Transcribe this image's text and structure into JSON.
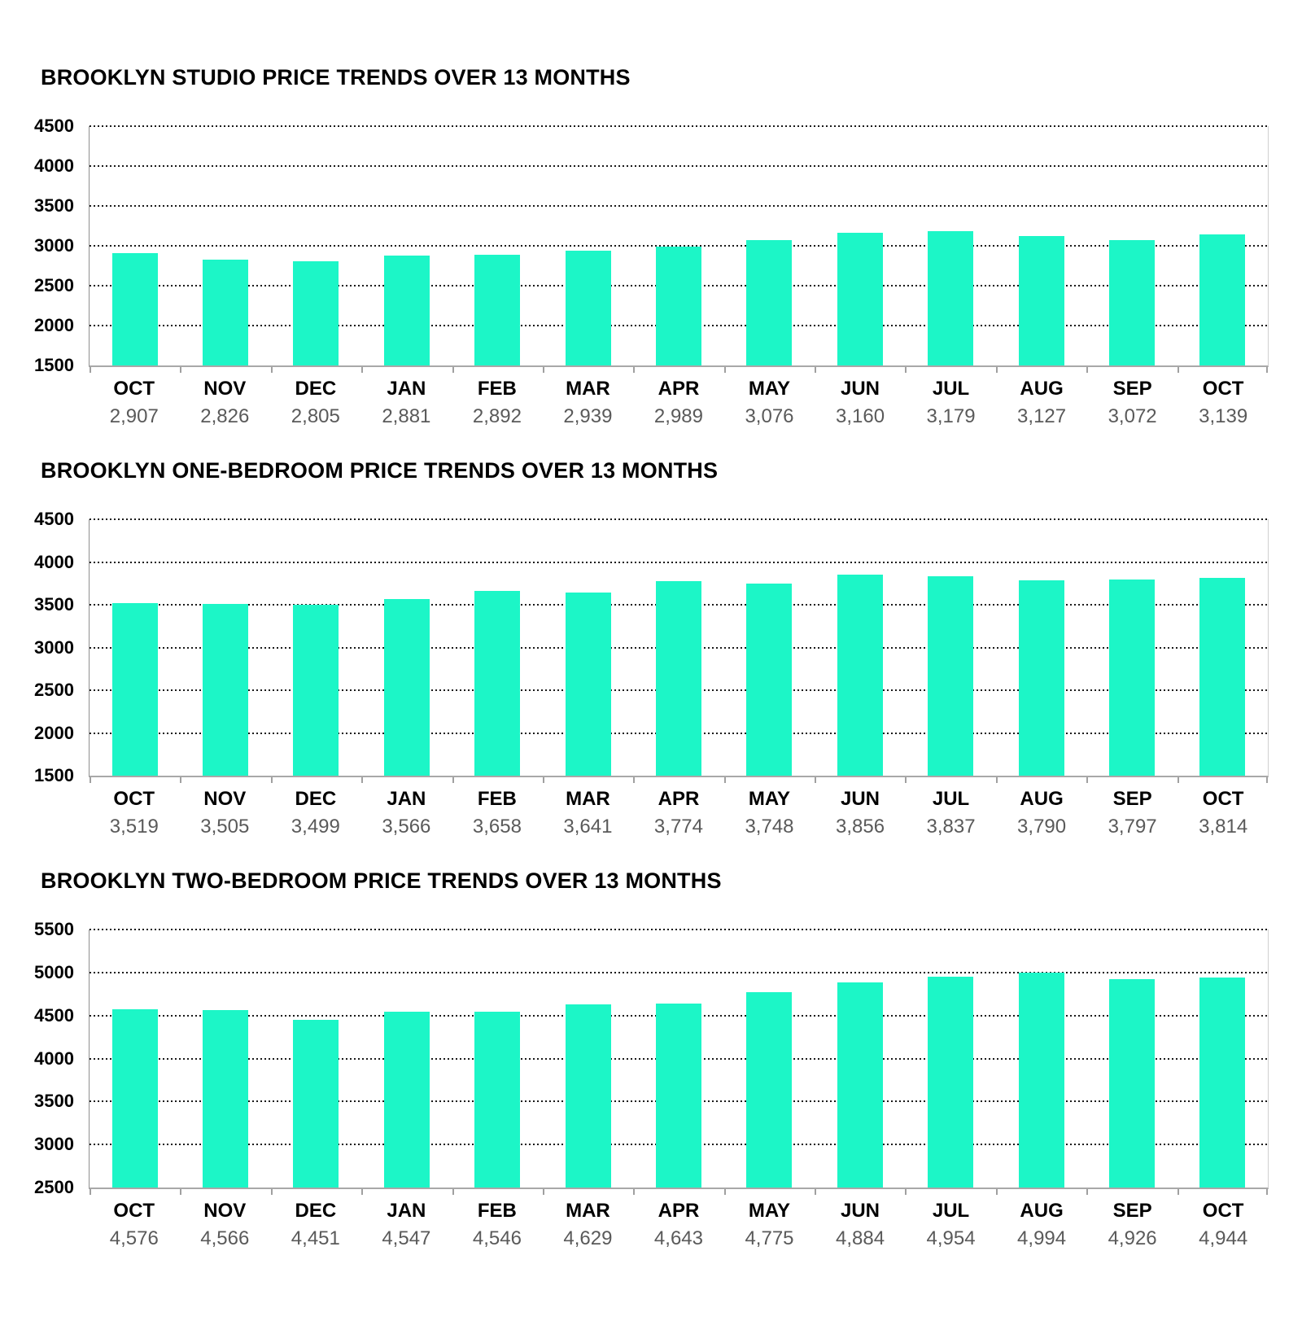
{
  "bar_color": "#1CF6C7",
  "chart_data": [
    {
      "type": "bar",
      "title": "BROOKLYN STUDIO PRICE TRENDS OVER 13 MONTHS",
      "categories": [
        "OCT",
        "NOV",
        "DEC",
        "JAN",
        "FEB",
        "MAR",
        "APR",
        "MAY",
        "JUN",
        "JUL",
        "AUG",
        "SEP",
        "OCT"
      ],
      "values": [
        2907,
        2826,
        2805,
        2881,
        2892,
        2939,
        2989,
        3076,
        3160,
        3179,
        3127,
        3072,
        3139
      ],
      "value_labels": [
        "2,907",
        "2,826",
        "2,805",
        "2,881",
        "2,892",
        "2,939",
        "2,989",
        "3,076",
        "3,160",
        "3,179",
        "3,127",
        "3,072",
        "3,139"
      ],
      "ylim": [
        1500,
        4500
      ],
      "y_step": 500,
      "y_tick_labels": [
        "4500",
        "4000",
        "3500",
        "3000",
        "2500",
        "2000",
        "1500"
      ],
      "xlabel": "",
      "ylabel": "",
      "grid": "horizontal-dotted",
      "legend": "none"
    },
    {
      "type": "bar",
      "title": "BROOKLYN ONE-BEDROOM PRICE TRENDS OVER 13 MONTHS",
      "categories": [
        "OCT",
        "NOV",
        "DEC",
        "JAN",
        "FEB",
        "MAR",
        "APR",
        "MAY",
        "JUN",
        "JUL",
        "AUG",
        "SEP",
        "OCT"
      ],
      "values": [
        3519,
        3505,
        3499,
        3566,
        3658,
        3641,
        3774,
        3748,
        3856,
        3837,
        3790,
        3797,
        3814
      ],
      "value_labels": [
        "3,519",
        "3,505",
        "3,499",
        "3,566",
        "3,658",
        "3,641",
        "3,774",
        "3,748",
        "3,856",
        "3,837",
        "3,790",
        "3,797",
        "3,814"
      ],
      "ylim": [
        1500,
        4500
      ],
      "y_step": 500,
      "y_tick_labels": [
        "4500",
        "4000",
        "3500",
        "3000",
        "2500",
        "2000",
        "1500"
      ],
      "xlabel": "",
      "ylabel": "",
      "grid": "horizontal-dotted",
      "legend": "none"
    },
    {
      "type": "bar",
      "title": "BROOKLYN TWO-BEDROOM PRICE TRENDS OVER 13 MONTHS",
      "categories": [
        "OCT",
        "NOV",
        "DEC",
        "JAN",
        "FEB",
        "MAR",
        "APR",
        "MAY",
        "JUN",
        "JUL",
        "AUG",
        "SEP",
        "OCT"
      ],
      "values": [
        4576,
        4566,
        4451,
        4547,
        4546,
        4629,
        4643,
        4775,
        4884,
        4954,
        4994,
        4926,
        4944
      ],
      "value_labels": [
        "4,576",
        "4,566",
        "4,451",
        "4,547",
        "4,546",
        "4,629",
        "4,643",
        "4,775",
        "4,884",
        "4,954",
        "4,994",
        "4,926",
        "4,944"
      ],
      "ylim": [
        2500,
        5500
      ],
      "y_step": 500,
      "y_tick_labels": [
        "5500",
        "5000",
        "4500",
        "4000",
        "3500",
        "3000",
        "2500"
      ],
      "xlabel": "",
      "ylabel": "",
      "grid": "horizontal-dotted",
      "legend": "none"
    }
  ]
}
